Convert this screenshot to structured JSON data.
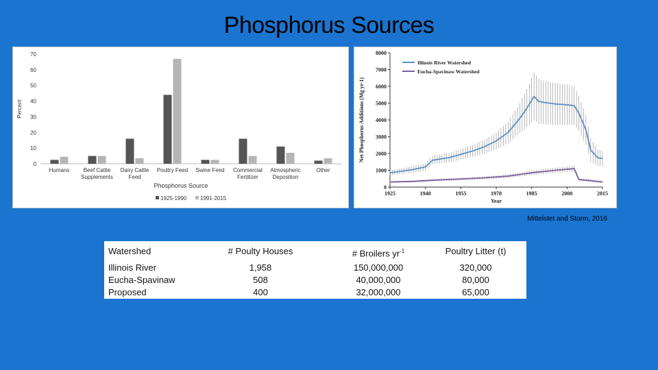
{
  "slide": {
    "title": "Phosphorus Sources",
    "citation": "Mittelstet and Storm, 2016"
  },
  "chart_data": [
    {
      "type": "bar",
      "title": "",
      "xlabel": "Phosphorus Source",
      "ylabel": "Percent",
      "ylim": [
        0,
        70
      ],
      "yticks": [
        0,
        10,
        20,
        30,
        40,
        50,
        60,
        70
      ],
      "categories": [
        "Humans",
        "Beef Cattle Supplements",
        "Dairy Cattle Feed",
        "Poultry Feed",
        "Swine Feed",
        "Commercial Fertilizer",
        "Atmospheric Deposition",
        "Other"
      ],
      "category_lines": [
        [
          "Humans"
        ],
        [
          "Beef Cattle",
          "Supplements"
        ],
        [
          "Dairy Cattle",
          "Feed"
        ],
        [
          "Poultry Feed"
        ],
        [
          "Swine Feed"
        ],
        [
          "Commercial",
          "Fertilizer"
        ],
        [
          "Atmospheric",
          "Deposition"
        ],
        [
          "Other"
        ]
      ],
      "series": [
        {
          "name": "1925-1990",
          "color": "#555555",
          "values": [
            2.5,
            5,
            16,
            44,
            2.5,
            16,
            11,
            2
          ]
        },
        {
          "name": "1991-2015",
          "color": "#b5b5b5",
          "values": [
            4.5,
            5,
            3.5,
            67,
            2.5,
            5,
            7,
            3.5
          ]
        }
      ],
      "legend": "bottom",
      "grid": false
    },
    {
      "type": "line",
      "title": "",
      "xlabel": "Year",
      "ylabel": "Net Phosphorus Additions (Mg yr-1)",
      "xlim": [
        1925,
        2015
      ],
      "ylim": [
        0,
        8000
      ],
      "xticks": [
        1925,
        1940,
        1955,
        1970,
        1985,
        2000,
        2015
      ],
      "yticks": [
        0,
        1000,
        2000,
        3000,
        4000,
        5000,
        6000,
        7000,
        8000
      ],
      "legend": "top-left",
      "series": [
        {
          "name": "Illinois River Watershed",
          "color": "#5a8fc4",
          "x": [
            1925,
            1930,
            1935,
            1940,
            1943,
            1950,
            1955,
            1960,
            1965,
            1970,
            1975,
            1980,
            1983,
            1986,
            1988,
            1990,
            1995,
            2000,
            2003,
            2005,
            2008,
            2010,
            2013,
            2015
          ],
          "y": [
            850,
            950,
            1050,
            1200,
            1600,
            1750,
            1950,
            2150,
            2400,
            2750,
            3250,
            4100,
            4700,
            5400,
            5100,
            5050,
            4950,
            4900,
            4850,
            4400,
            3400,
            2200,
            1750,
            1700
          ],
          "err": [
            150,
            170,
            200,
            230,
            250,
            280,
            320,
            360,
            420,
            500,
            650,
            900,
            1150,
            1400,
            1350,
            1300,
            1250,
            1200,
            1150,
            1050,
            900,
            700,
            500,
            450
          ]
        },
        {
          "name": "Eucha-Spavinaw Watershed",
          "color": "#7d5f9c",
          "x": [
            1925,
            1935,
            1940,
            1945,
            1955,
            1965,
            1975,
            1985,
            1995,
            2003,
            2005,
            2010,
            2015
          ],
          "y": [
            300,
            340,
            380,
            420,
            480,
            550,
            650,
            850,
            1000,
            1100,
            450,
            380,
            300
          ],
          "err": [
            60,
            65,
            70,
            75,
            80,
            90,
            110,
            140,
            160,
            170,
            90,
            80,
            70
          ]
        }
      ],
      "grid": false
    }
  ],
  "table": {
    "headers": {
      "watershed": "Watershed",
      "houses": "# Poulty Houses",
      "broilers": "# Broilers yr",
      "broilers_sup": "-1",
      "litter": "Poultry Litter (t)"
    },
    "rows": [
      {
        "watershed": "Illinois River",
        "houses": "1,958",
        "broilers": "150,000,000",
        "litter": "320,000"
      },
      {
        "watershed": "Eucha-Spavinaw",
        "houses": "508",
        "broilers": "40,000,000",
        "litter": "80,000"
      },
      {
        "watershed": "Proposed",
        "houses": "400",
        "broilers": "32,000,000",
        "litter": "65,000"
      }
    ]
  }
}
